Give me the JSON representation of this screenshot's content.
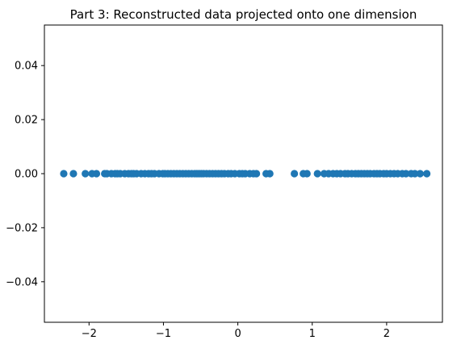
{
  "chart_data": {
    "type": "scatter",
    "title": "Part 3: Reconstructed data projected onto one dimension",
    "xlabel": "",
    "ylabel": "",
    "xlim": [
      -2.6,
      2.75
    ],
    "ylim": [
      -0.055,
      0.055
    ],
    "x_ticks": [
      {
        "value": -2,
        "label": "−2"
      },
      {
        "value": -1,
        "label": "−1"
      },
      {
        "value": 0,
        "label": "0"
      },
      {
        "value": 1,
        "label": "1"
      },
      {
        "value": 2,
        "label": "2"
      }
    ],
    "y_ticks": [
      {
        "value": -0.04,
        "label": "−0.04"
      },
      {
        "value": -0.02,
        "label": "−0.02"
      },
      {
        "value": 0.0,
        "label": "0.00"
      },
      {
        "value": 0.02,
        "label": "0.02"
      },
      {
        "value": 0.04,
        "label": "0.04"
      }
    ],
    "grid": false,
    "legend": "none",
    "color": "#1f77b4",
    "series": [
      {
        "x": [
          -2.34,
          -2.21,
          -2.05,
          -1.96,
          -1.9,
          -1.79,
          -1.76,
          -1.7,
          -1.65,
          -1.62,
          -1.58,
          -1.52,
          -1.47,
          -1.43,
          -1.4,
          -1.36,
          -1.3,
          -1.25,
          -1.2,
          -1.16,
          -1.12,
          -1.06,
          -1.01,
          -0.98,
          -0.94,
          -0.9,
          -0.86,
          -0.82,
          -0.78,
          -0.74,
          -0.7,
          -0.66,
          -0.62,
          -0.58,
          -0.55,
          -0.52,
          -0.49,
          -0.46,
          -0.42,
          -0.38,
          -0.34,
          -0.3,
          -0.26,
          -0.22,
          -0.18,
          -0.13,
          -0.09,
          -0.04,
          0.02,
          0.06,
          0.1,
          0.16,
          0.21,
          0.25,
          0.38,
          0.43,
          0.76,
          0.88,
          0.93,
          1.07,
          1.16,
          1.22,
          1.28,
          1.33,
          1.38,
          1.44,
          1.48,
          1.53,
          1.58,
          1.62,
          1.66,
          1.7,
          1.74,
          1.78,
          1.83,
          1.87,
          1.91,
          1.96,
          2.0,
          2.05,
          2.1,
          2.15,
          2.21,
          2.26,
          2.33,
          2.38,
          2.45,
          2.54
        ],
        "y": [
          0,
          0,
          0,
          0,
          0,
          0,
          0,
          0,
          0,
          0,
          0,
          0,
          0,
          0,
          0,
          0,
          0,
          0,
          0,
          0,
          0,
          0,
          0,
          0,
          0,
          0,
          0,
          0,
          0,
          0,
          0,
          0,
          0,
          0,
          0,
          0,
          0,
          0,
          0,
          0,
          0,
          0,
          0,
          0,
          0,
          0,
          0,
          0,
          0,
          0,
          0,
          0,
          0,
          0,
          0,
          0,
          0,
          0,
          0,
          0,
          0,
          0,
          0,
          0,
          0,
          0,
          0,
          0,
          0,
          0,
          0,
          0,
          0,
          0,
          0,
          0,
          0,
          0,
          0,
          0,
          0,
          0,
          0,
          0,
          0,
          0,
          0,
          0
        ]
      }
    ]
  }
}
